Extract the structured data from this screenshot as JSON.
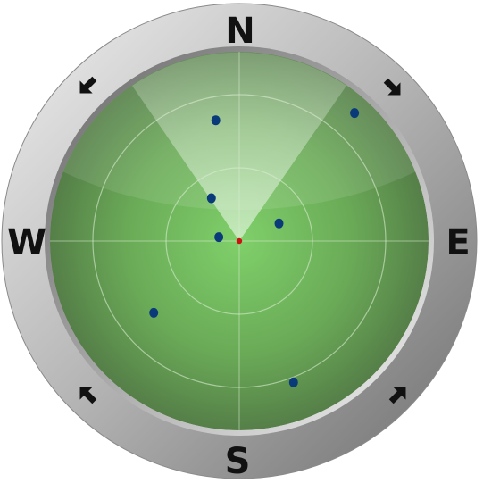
{
  "compass": {
    "north": "N",
    "east": "E",
    "south": "S",
    "west": "W"
  },
  "colors": {
    "bezel_light": "#e6e6e6",
    "bezel_dark": "#7a7a7a",
    "screen_center": "#7dcf6a",
    "screen_edge": "#5b8a4c",
    "blip": "#0a3a7a",
    "center_marker": "#cc1111",
    "arrow": "#111111"
  },
  "icons": [
    "inward-arrow-icon"
  ],
  "radar": {
    "sweep_direction": "north",
    "blips": [
      {
        "bearing_deg": 349,
        "range": 0.65
      },
      {
        "bearing_deg": 42,
        "range": 0.91
      },
      {
        "bearing_deg": 327,
        "range": 0.27
      },
      {
        "bearing_deg": 66,
        "range": 0.23
      },
      {
        "bearing_deg": 281,
        "range": 0.11
      },
      {
        "bearing_deg": 230,
        "range": 0.59
      },
      {
        "bearing_deg": 159,
        "range": 0.8
      }
    ]
  }
}
